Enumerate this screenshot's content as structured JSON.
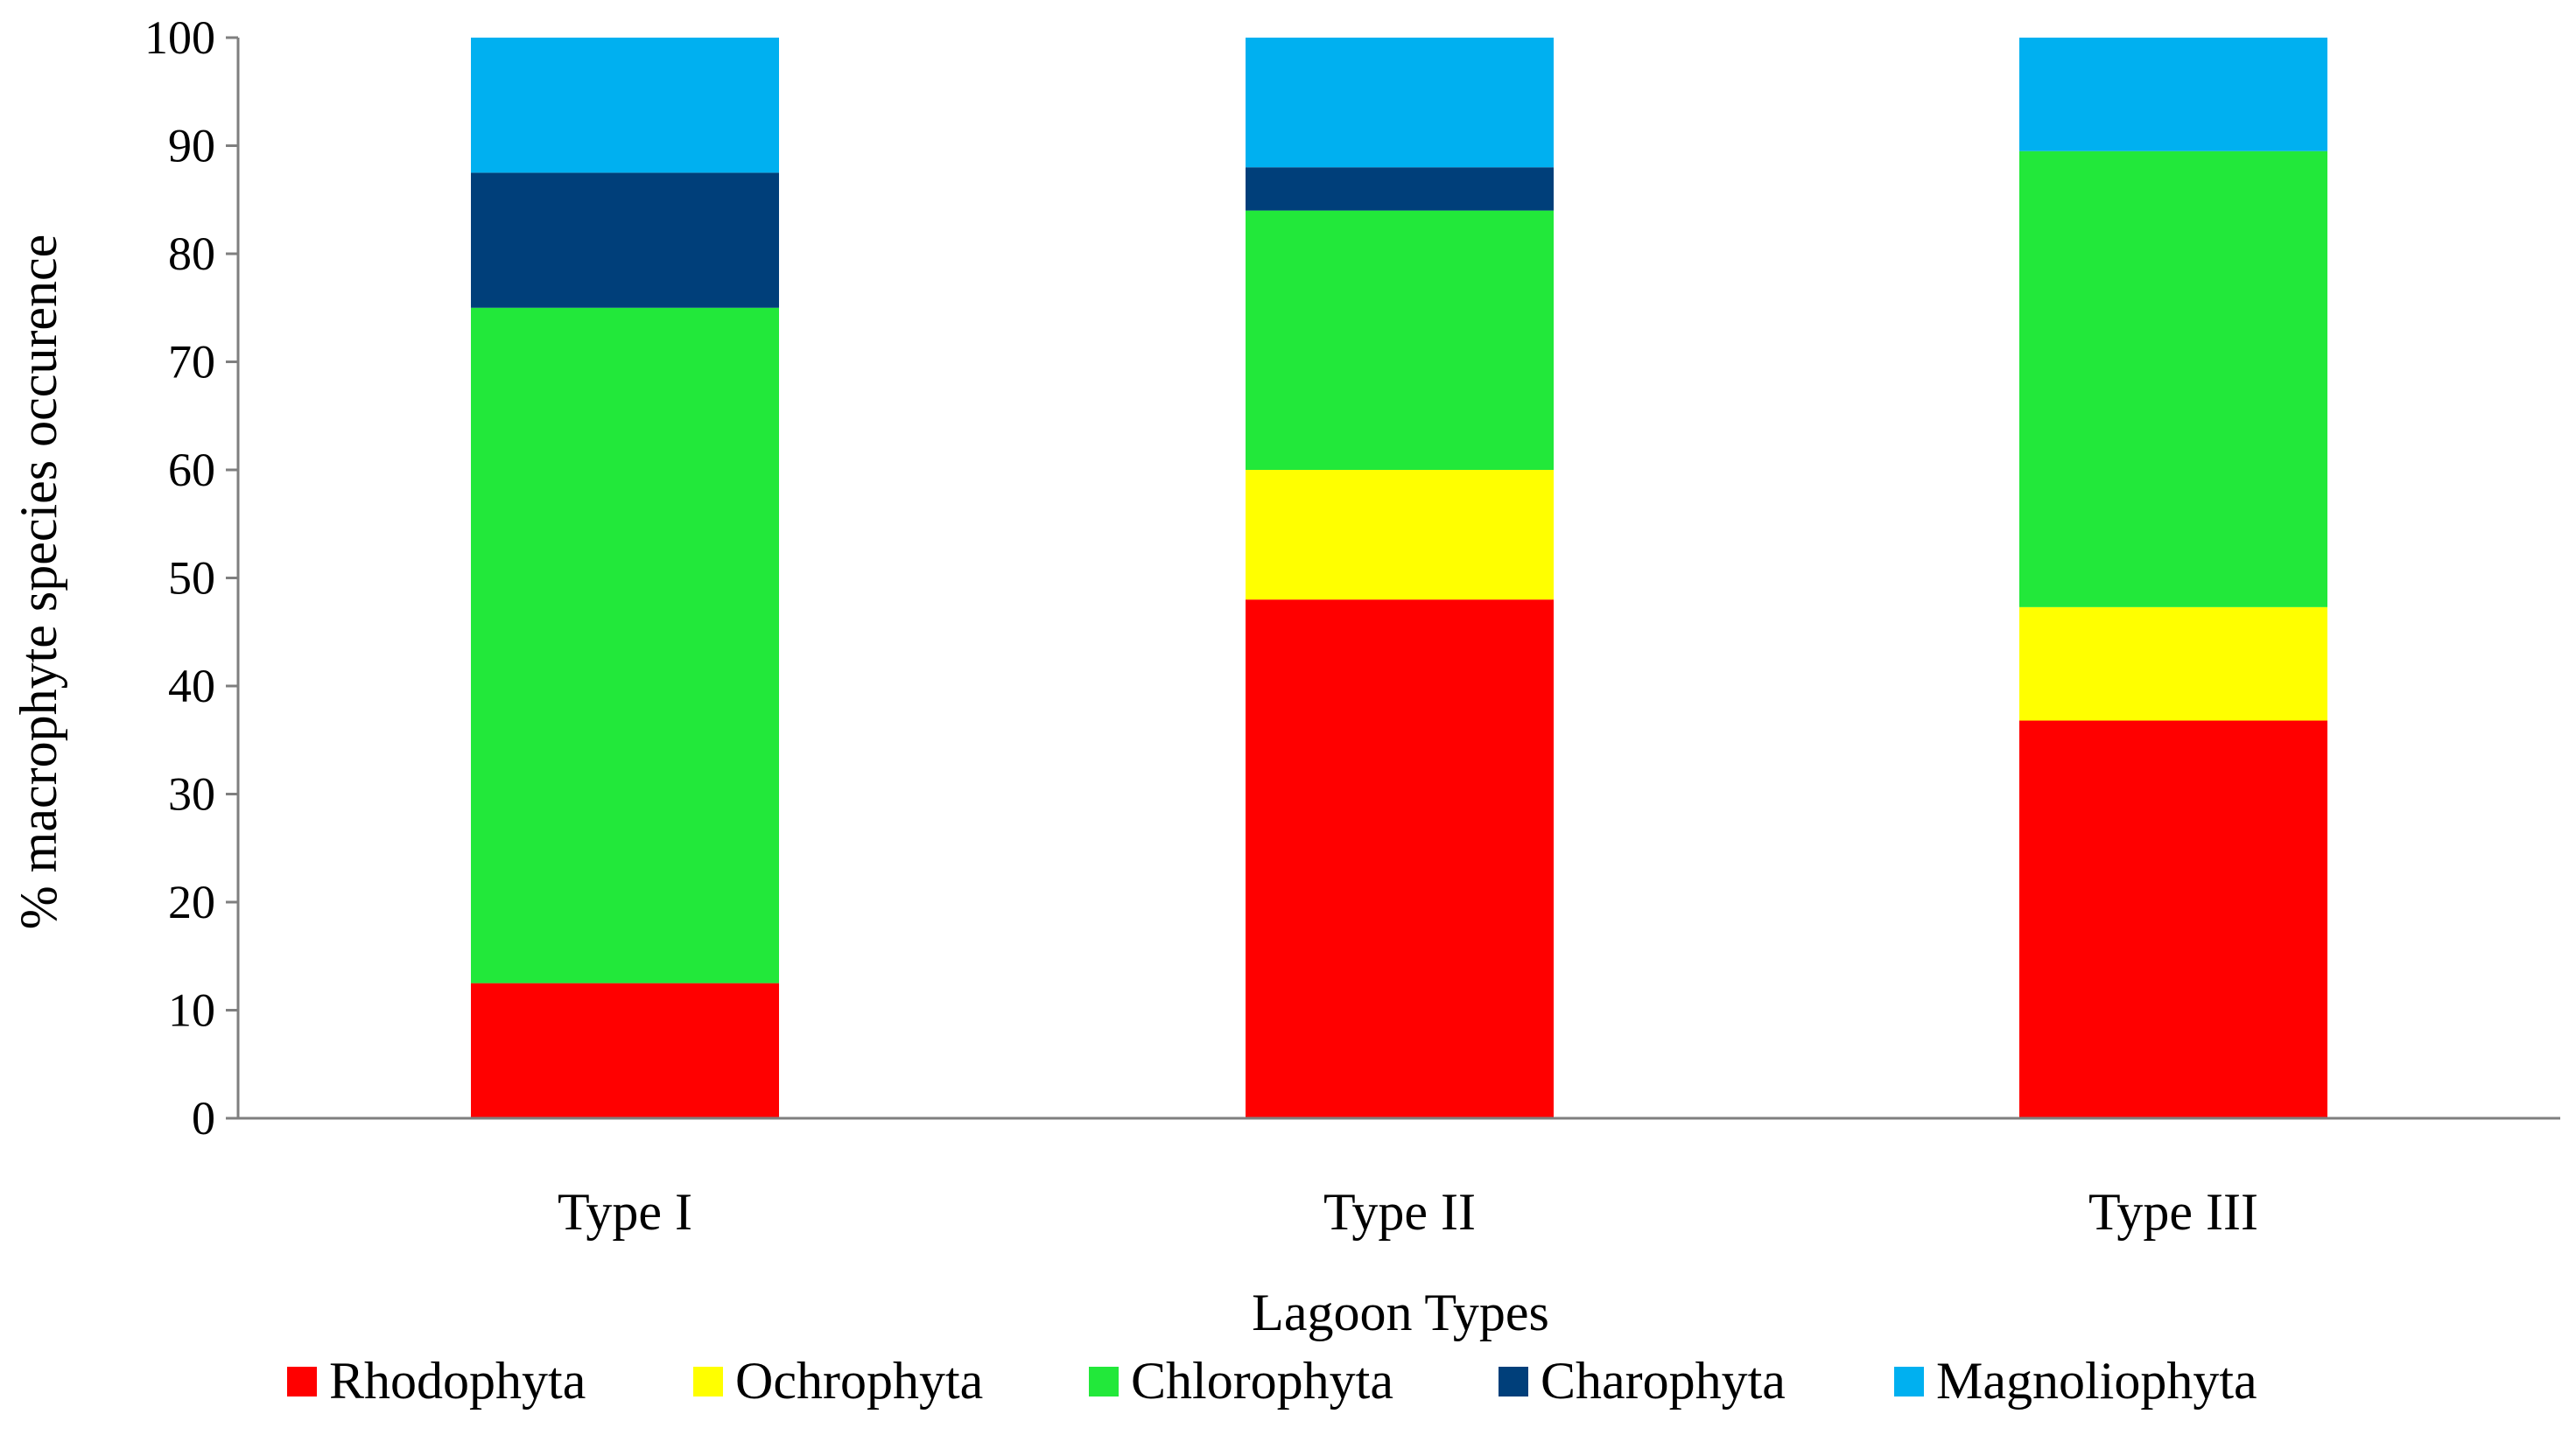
{
  "chart_data": {
    "type": "bar",
    "stacked": true,
    "title": "",
    "xlabel": "Lagoon Types",
    "ylabel": "% macrophyte species occurence",
    "ylim": [
      0,
      100
    ],
    "yticks": [
      "0",
      "10",
      "20",
      "30",
      "40",
      "50",
      "60",
      "70",
      "80",
      "90",
      "100"
    ],
    "categories": [
      "Type I",
      "Type II",
      "Type III"
    ],
    "series": [
      {
        "name": "Rhodophyta",
        "color": "#ff0000",
        "values": [
          12.5,
          48,
          36.8
        ]
      },
      {
        "name": "Ochrophyta",
        "color": "#ffff00",
        "values": [
          0,
          12,
          10.5
        ]
      },
      {
        "name": "Chlorophyta",
        "color": "#22e83a",
        "values": [
          62.5,
          24,
          42.2
        ]
      },
      {
        "name": "Charophyta",
        "color": "#003f7a",
        "values": [
          12.5,
          4,
          0
        ]
      },
      {
        "name": "Magnoliophyta",
        "color": "#00b0f0",
        "values": [
          12.5,
          12,
          10.5
        ]
      }
    ],
    "legend_position": "bottom",
    "grid": false
  }
}
